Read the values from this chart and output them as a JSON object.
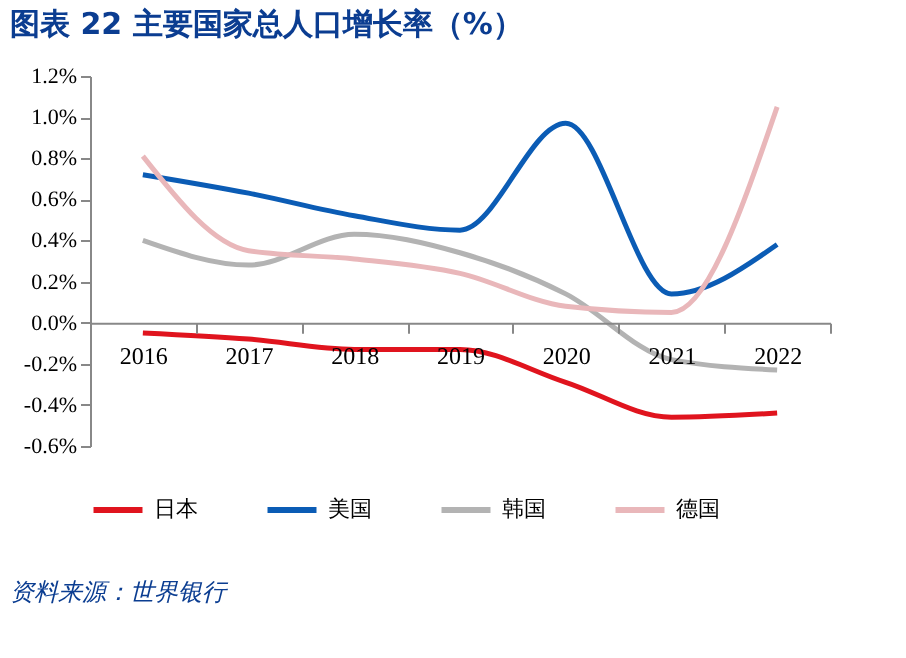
{
  "chart_data": {
    "type": "line",
    "title": "图表 22  主要国家总人口增长率（%）",
    "categories": [
      "2016",
      "2017",
      "2018",
      "2019",
      "2020",
      "2021",
      "2022"
    ],
    "series": [
      {
        "name": "日本",
        "color": "#e0141e",
        "values": [
          -0.05,
          -0.08,
          -0.13,
          -0.13,
          -0.29,
          -0.46,
          -0.44
        ]
      },
      {
        "name": "美国",
        "color": "#0b5cb5",
        "values": [
          0.72,
          0.63,
          0.52,
          0.45,
          0.97,
          0.14,
          0.38
        ]
      },
      {
        "name": "韩国",
        "color": "#b3b3b3",
        "values": [
          0.4,
          0.28,
          0.43,
          0.34,
          0.14,
          -0.18,
          -0.23
        ]
      },
      {
        "name": "德国",
        "color": "#e9b7ba",
        "values": [
          0.81,
          0.35,
          0.31,
          0.24,
          0.08,
          0.05,
          1.05
        ]
      }
    ],
    "ylim": [
      -0.6,
      1.2
    ],
    "yticks": [
      {
        "value": -0.6,
        "label": "-0.6%"
      },
      {
        "value": -0.4,
        "label": "-0.4%"
      },
      {
        "value": -0.2,
        "label": "-0.2%"
      },
      {
        "value": 0,
        "label": "0.0%"
      },
      {
        "value": 0.2,
        "label": "0.2%"
      },
      {
        "value": 0.4,
        "label": "0.4%"
      },
      {
        "value": 0.6,
        "label": "0.6%"
      },
      {
        "value": 0.8,
        "label": "0.8%"
      },
      {
        "value": 1.0,
        "label": "1.0%"
      },
      {
        "value": 1.2,
        "label": "1.2%"
      }
    ],
    "grid": false,
    "legend": "bottom",
    "marker": "none",
    "line_style": "solid",
    "annotations": [
      "资料来源：世界银行"
    ]
  }
}
